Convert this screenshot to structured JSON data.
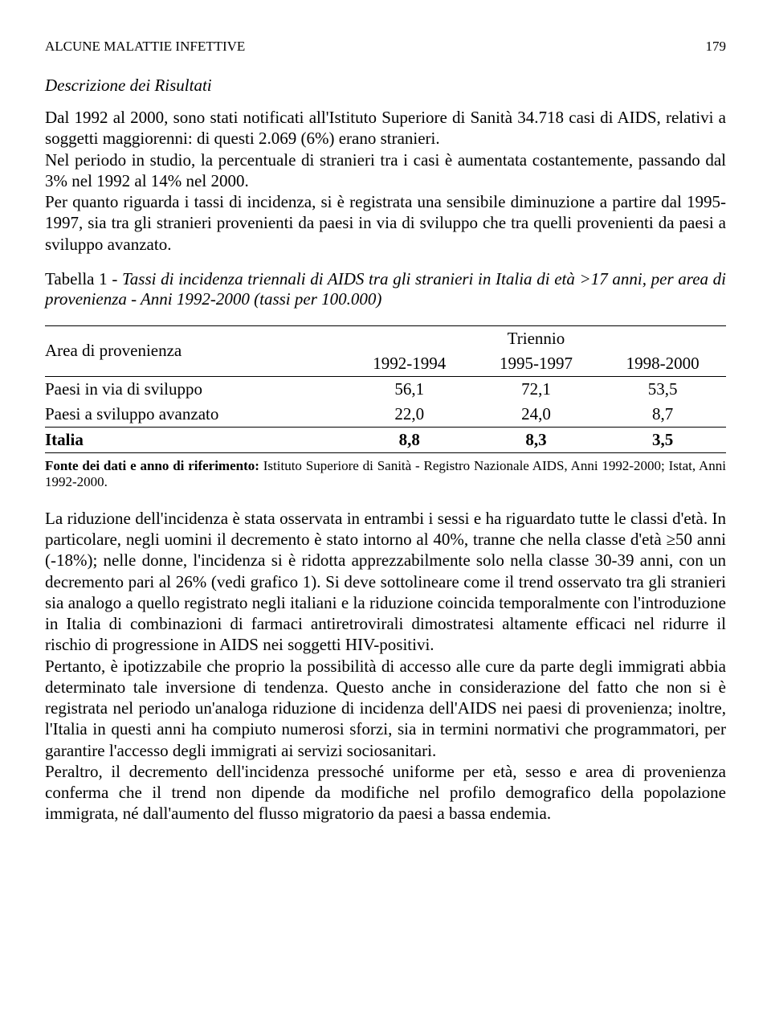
{
  "header": {
    "running_title": "ALCUNE MALATTIE INFETTIVE",
    "page_number": "179"
  },
  "section_title": "Descrizione dei Risultati",
  "para1": "Dal 1992 al 2000, sono stati notificati all'Istituto Superiore di Sanità 34.718 casi di AIDS, relativi a soggetti maggiorenni: di questi 2.069 (6%) erano stranieri.",
  "para2": "Nel periodo in studio, la percentuale di stranieri tra i casi è aumentata costantemente, passando dal 3% nel 1992 al 14% nel 2000.",
  "para3": "Per quanto riguarda i tassi di incidenza, si è registrata una sensibile diminuzione a partire dal 1995-1997, sia tra gli stranieri provenienti da paesi in via di sviluppo che tra quelli provenienti da paesi a sviluppo avanzato.",
  "table": {
    "label": "Tabella 1",
    "title": "Tassi di incidenza triennali di AIDS tra gli stranieri in Italia di età >17 anni, per area di provenienza - Anni 1992-2000 (tassi per 100.000)",
    "col_group_header": "Triennio",
    "row_header": "Area di provenienza",
    "columns": [
      "1992-1994",
      "1995-1997",
      "1998-2000"
    ],
    "rows": [
      {
        "label": "Paesi in via di sviluppo",
        "values": [
          "56,1",
          "72,1",
          "53,5"
        ]
      },
      {
        "label": "Paesi a sviluppo avanzato",
        "values": [
          "22,0",
          "24,0",
          "8,7"
        ]
      }
    ],
    "total_row": {
      "label": "Italia",
      "values": [
        "8,8",
        "8,3",
        "3,5"
      ]
    },
    "footnote_label": "Fonte dei dati e anno di riferimento:",
    "footnote_text": " Istituto Superiore di Sanità - Registro Nazionale AIDS, Anni 1992-2000; Istat, Anni 1992-2000."
  },
  "para4": "La riduzione dell'incidenza è stata osservata in entrambi i sessi e ha riguardato tutte le classi d'età. In particolare, negli uomini il decremento è stato intorno al 40%, tranne che nella classe d'età ≥50 anni (-18%); nelle donne, l'incidenza si è ridotta apprezzabilmente solo nella classe 30-39 anni, con un decremento pari al 26% (vedi grafico 1). Si deve sottolineare come il trend osservato tra gli stranieri sia analogo a quello registrato negli italiani e la riduzione coincida temporalmente con l'introduzione in Italia di combinazioni di farmaci antiretrovirali dimostratesi altamente efficaci nel ridurre il rischio di progressione in AIDS nei soggetti HIV-positivi.",
  "para5": "Pertanto, è ipotizzabile che proprio la possibilità di accesso alle cure da parte degli immigrati abbia determinato tale inversione di tendenza. Questo anche in considerazione del fatto che non si è registrata nel periodo un'analoga riduzione di incidenza dell'AIDS nei paesi di provenienza; inoltre, l'Italia in questi anni ha compiuto numerosi sforzi, sia in termini normativi che programmatori, per garantire l'accesso degli immigrati ai servizi sociosanitari.",
  "para6": "Peraltro, il decremento dell'incidenza pressoché uniforme per età, sesso e area di provenienza conferma che il trend non dipende da modifiche nel profilo demografico della popolazione immigrata, né dall'aumento del flusso migratorio da paesi a bassa endemia."
}
